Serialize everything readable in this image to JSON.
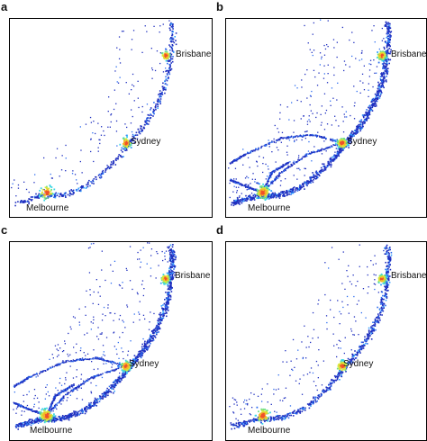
{
  "panels": [
    {
      "label": "a",
      "cities": {
        "brisbane": "Brisbane",
        "sydney": "Sydney",
        "melbourne": "Melbourne"
      },
      "density": "low"
    },
    {
      "label": "b",
      "cities": {
        "brisbane": "Brisbane",
        "sydney": "Sydney",
        "melbourne": "Melbourne"
      },
      "density": "high"
    },
    {
      "label": "c",
      "cities": {
        "brisbane": "Brisbane",
        "sydney": "Sydney",
        "melbourne": "Melbourne"
      },
      "density": "high"
    },
    {
      "label": "d",
      "cities": {
        "brisbane": "Brisbane",
        "sydney": "Sydney",
        "melbourne": "Melbourne"
      },
      "density": "medium"
    }
  ],
  "colormap": [
    "#1f2fbf",
    "#2b6cf0",
    "#34a0ff",
    "#3fd6e6",
    "#6ee08a",
    "#d8e83a",
    "#f5b82a",
    "#f0502a"
  ]
}
